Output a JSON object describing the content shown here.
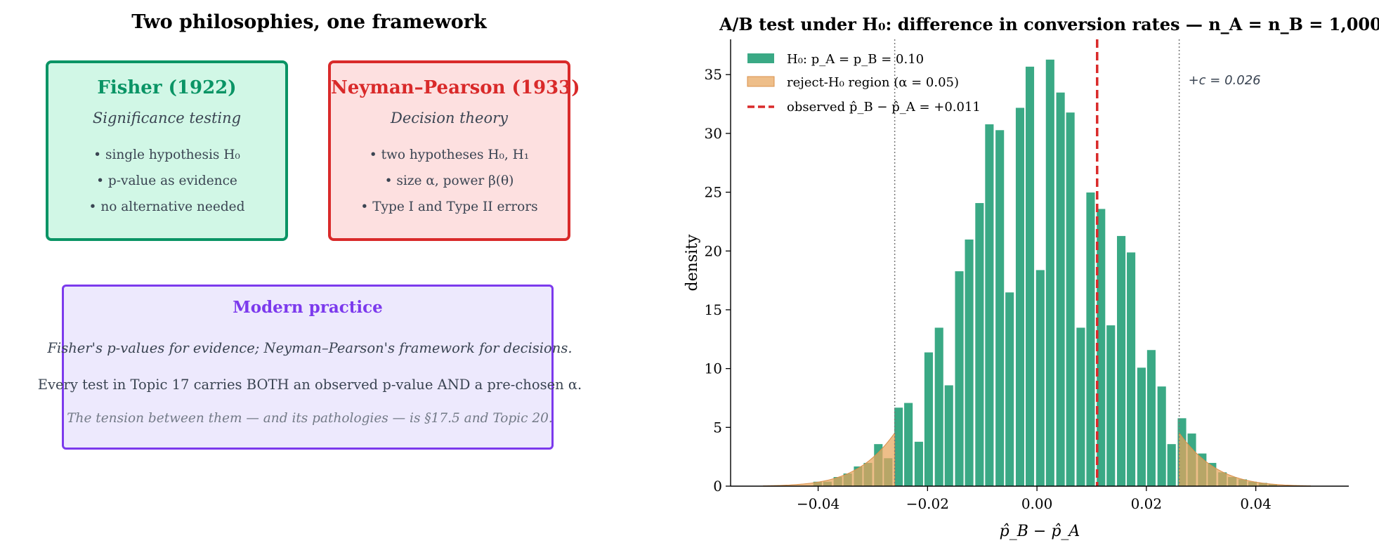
{
  "left_panel": {
    "title": "Two philosophies, one framework",
    "fisher": {
      "title": "Fisher (1922)",
      "subtitle": "Significance testing",
      "bullets": [
        "• single hypothesis H₀",
        "• p-value as evidence",
        "• no alternative needed"
      ]
    },
    "neyman_pearson": {
      "title": "Neyman–Pearson (1933)",
      "subtitle": "Decision theory",
      "bullets": [
        "• two hypotheses H₀, H₁",
        "• size α, power β(θ)",
        "• Type I and Type II errors"
      ]
    },
    "modern": {
      "title": "Modern practice",
      "line1": "Fisher's p-values for evidence; Neyman–Pearson's framework for decisions.",
      "line2": "Every test in Topic 17 carries BOTH an observed p-value AND a pre-chosen α.",
      "line3": "The tension between them — and its pathologies — is §17.5 and Topic 20."
    }
  },
  "colors": {
    "fisher": "#0a9465",
    "neyman_pearson": "#d92a2a",
    "modern": "#7c3aed",
    "histogram": "#3aa985",
    "reject_region": "#e8a55b",
    "observed_line": "#d92a2a"
  },
  "chart_data": {
    "type": "bar",
    "title": "A/B test under H₀: difference in conversion rates — n_A = n_B = 1,000",
    "xlabel": "p̂_B − p̂_A",
    "ylabel": "density",
    "xlim": [
      -0.056,
      0.057
    ],
    "ylim": [
      0,
      38
    ],
    "xticks": [
      -0.04,
      -0.02,
      0.0,
      0.02,
      0.04
    ],
    "xtick_labels": [
      "−0.04",
      "−0.02",
      "0.00",
      "0.02",
      "0.04"
    ],
    "yticks": [
      0,
      5,
      10,
      15,
      20,
      25,
      30,
      35
    ],
    "ytick_labels": [
      "0",
      "5",
      "10",
      "15",
      "20",
      "25",
      "30",
      "35"
    ],
    "bin_width": 0.00185,
    "bin_centers": [
      -0.04,
      -0.0382,
      -0.0363,
      -0.0345,
      -0.0326,
      -0.0308,
      -0.0289,
      -0.0271,
      -0.0252,
      -0.0234,
      -0.0215,
      -0.0197,
      -0.0178,
      -0.016,
      -0.0141,
      -0.0123,
      -0.0104,
      -0.0086,
      -0.0067,
      -0.0049,
      -0.003,
      -0.0012,
      0.0007,
      0.0025,
      0.0044,
      0.0062,
      0.0081,
      0.0099,
      0.0118,
      0.0136,
      0.0155,
      0.0173,
      0.0192,
      0.021,
      0.0229,
      0.0247,
      0.0266,
      0.0284,
      0.0303,
      0.0321,
      0.034,
      0.0358,
      0.0377,
      0.0395,
      0.0414,
      0.0432,
      0.0451
    ],
    "values": [
      0.4,
      0.4,
      0.8,
      1.1,
      1.7,
      2.0,
      3.6,
      2.4,
      6.7,
      7.1,
      3.8,
      11.4,
      13.5,
      8.6,
      18.3,
      21.0,
      24.1,
      30.8,
      30.3,
      16.5,
      32.2,
      35.7,
      18.4,
      36.3,
      33.5,
      31.8,
      13.5,
      25.0,
      23.6,
      13.7,
      21.3,
      19.9,
      10.1,
      11.6,
      8.5,
      3.6,
      5.8,
      4.5,
      2.8,
      2.0,
      1.2,
      0.8,
      0.6,
      0.4,
      0.3,
      0.2,
      0.0
    ],
    "series": [
      {
        "name": "H₀: p_A = p_B = 0.10",
        "kind": "histogram"
      },
      {
        "name": "reject-H₀ region (α = 0.05)",
        "kind": "area"
      },
      {
        "name": "observed p̂_B − p̂_A = +0.011",
        "kind": "vline"
      }
    ],
    "reject_region": {
      "critical_value": 0.026,
      "sd": 0.0134,
      "x_start": -0.05,
      "x_end": 0.05
    },
    "observed": 0.011,
    "annotations": [
      {
        "text": "+c = 0.026",
        "x": 0.026
      }
    ],
    "grid": false,
    "legend_position": "top-left"
  }
}
